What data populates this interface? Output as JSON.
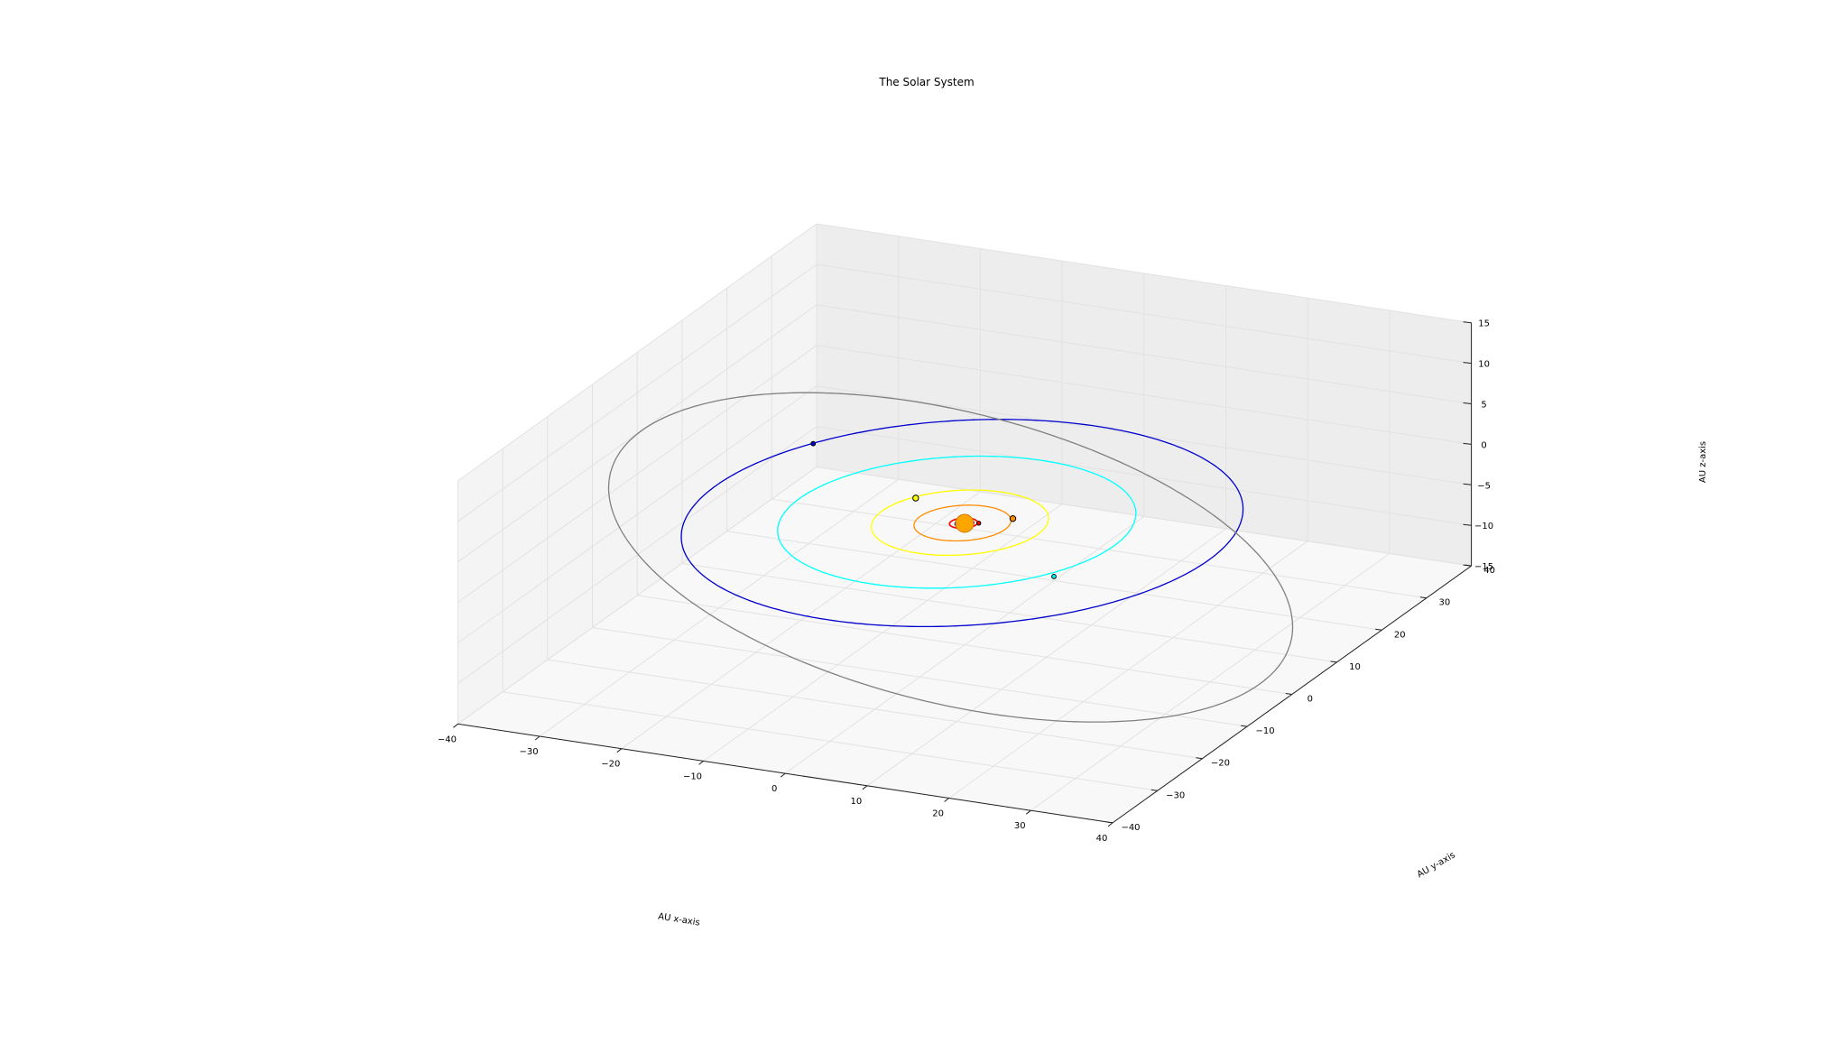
{
  "chart_data": {
    "type": "line",
    "title": "The Solar System",
    "xlabel": "AU x-axis",
    "ylabel": "AU y-axis",
    "zlabel": "AU z-axis",
    "xlim": [
      -40,
      40
    ],
    "ylim": [
      -40,
      40
    ],
    "zlim": [
      -15,
      15
    ],
    "grid": true,
    "x_ticks": [
      -40,
      -30,
      -20,
      -10,
      0,
      10,
      20,
      30,
      40
    ],
    "y_ticks": [
      -40,
      -30,
      -20,
      -10,
      0,
      10,
      20,
      30,
      40
    ],
    "z_ticks": [
      -15,
      -10,
      -5,
      0,
      5,
      10,
      15
    ],
    "x_tick_labels": [
      "−40",
      "−30",
      "−20",
      "−10",
      "0",
      "10",
      "20",
      "30",
      "40"
    ],
    "y_tick_labels": [
      "−40",
      "−30",
      "−20",
      "−10",
      "0",
      "10",
      "20",
      "30",
      "40"
    ],
    "z_tick_labels": [
      "−15",
      "−10",
      "−5",
      "0",
      "5",
      "10",
      "15"
    ],
    "sun": {
      "x": 0,
      "y": 0,
      "z": 0,
      "color": "#ffa500"
    },
    "series": [
      {
        "color": "#ff0000",
        "semi_major_axis": 1.5,
        "eccentricity": 0.09,
        "inclination_deg": 0,
        "node_deg": 0,
        "position": [
          1.4,
          0.6,
          0
        ]
      },
      {
        "color": "#0000ff",
        "semi_major_axis": 1.0,
        "eccentricity": 0.02,
        "inclination_deg": 0,
        "node_deg": 0,
        "position": [
          0.3,
          -0.9,
          0
        ]
      },
      {
        "color": "#ff8c00",
        "semi_major_axis": 5.2,
        "eccentricity": 0.05,
        "inclination_deg": 0,
        "node_deg": 0,
        "position": [
          4.2,
          3.1,
          0
        ]
      },
      {
        "color": "#ffff00",
        "semi_major_axis": 9.5,
        "eccentricity": 0.06,
        "inclination_deg": 0,
        "node_deg": 0,
        "position": [
          -8.5,
          4.6,
          0
        ]
      },
      {
        "color": "#00ffff",
        "semi_major_axis": 19.2,
        "eccentricity": 0.05,
        "inclination_deg": 0,
        "node_deg": 0,
        "position": [
          16.5,
          -10.2,
          0
        ]
      },
      {
        "color": "#0000cd",
        "semi_major_axis": 30.1,
        "eccentricity": 0.01,
        "inclination_deg": 0,
        "node_deg": 0,
        "position": [
          -26.5,
          14.6,
          0
        ]
      },
      {
        "color": "#808080",
        "semi_major_axis": 39.5,
        "eccentricity": 0.25,
        "inclination_deg": 17,
        "node_deg": 110,
        "position": null
      }
    ]
  }
}
